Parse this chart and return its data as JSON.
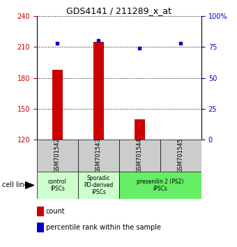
{
  "title": "GDS4141 / 211289_x_at",
  "samples": [
    "GSM701542",
    "GSM701543",
    "GSM701544",
    "GSM701545"
  ],
  "counts": [
    188,
    215,
    140,
    120
  ],
  "percentiles": [
    78,
    80,
    74,
    78
  ],
  "ylim_left": [
    120,
    240
  ],
  "ylim_right": [
    0,
    100
  ],
  "yticks_left": [
    120,
    150,
    180,
    210,
    240
  ],
  "yticks_right": [
    0,
    25,
    50,
    75,
    100
  ],
  "ytick_labels_right": [
    "0",
    "25",
    "50",
    "75",
    "100%"
  ],
  "bar_color": "#cc0000",
  "dot_color": "#0000cc",
  "bar_bottom": 120,
  "bar_width": 0.25,
  "cell_line_label": "cell line",
  "legend_count_label": "count",
  "legend_percentile_label": "percentile rank within the sample",
  "bg_sample_color": "#cccccc",
  "group_info": [
    {
      "label": "control\nIPSCs",
      "start": 0,
      "end": 1,
      "color": "#ccffcc"
    },
    {
      "label": "Sporadic\nPD-derived\niPSCs",
      "start": 1,
      "end": 2,
      "color": "#ccffcc"
    },
    {
      "label": "presenilin 2 (PS2)\niPSCs",
      "start": 2,
      "end": 4,
      "color": "#66ee66"
    }
  ]
}
